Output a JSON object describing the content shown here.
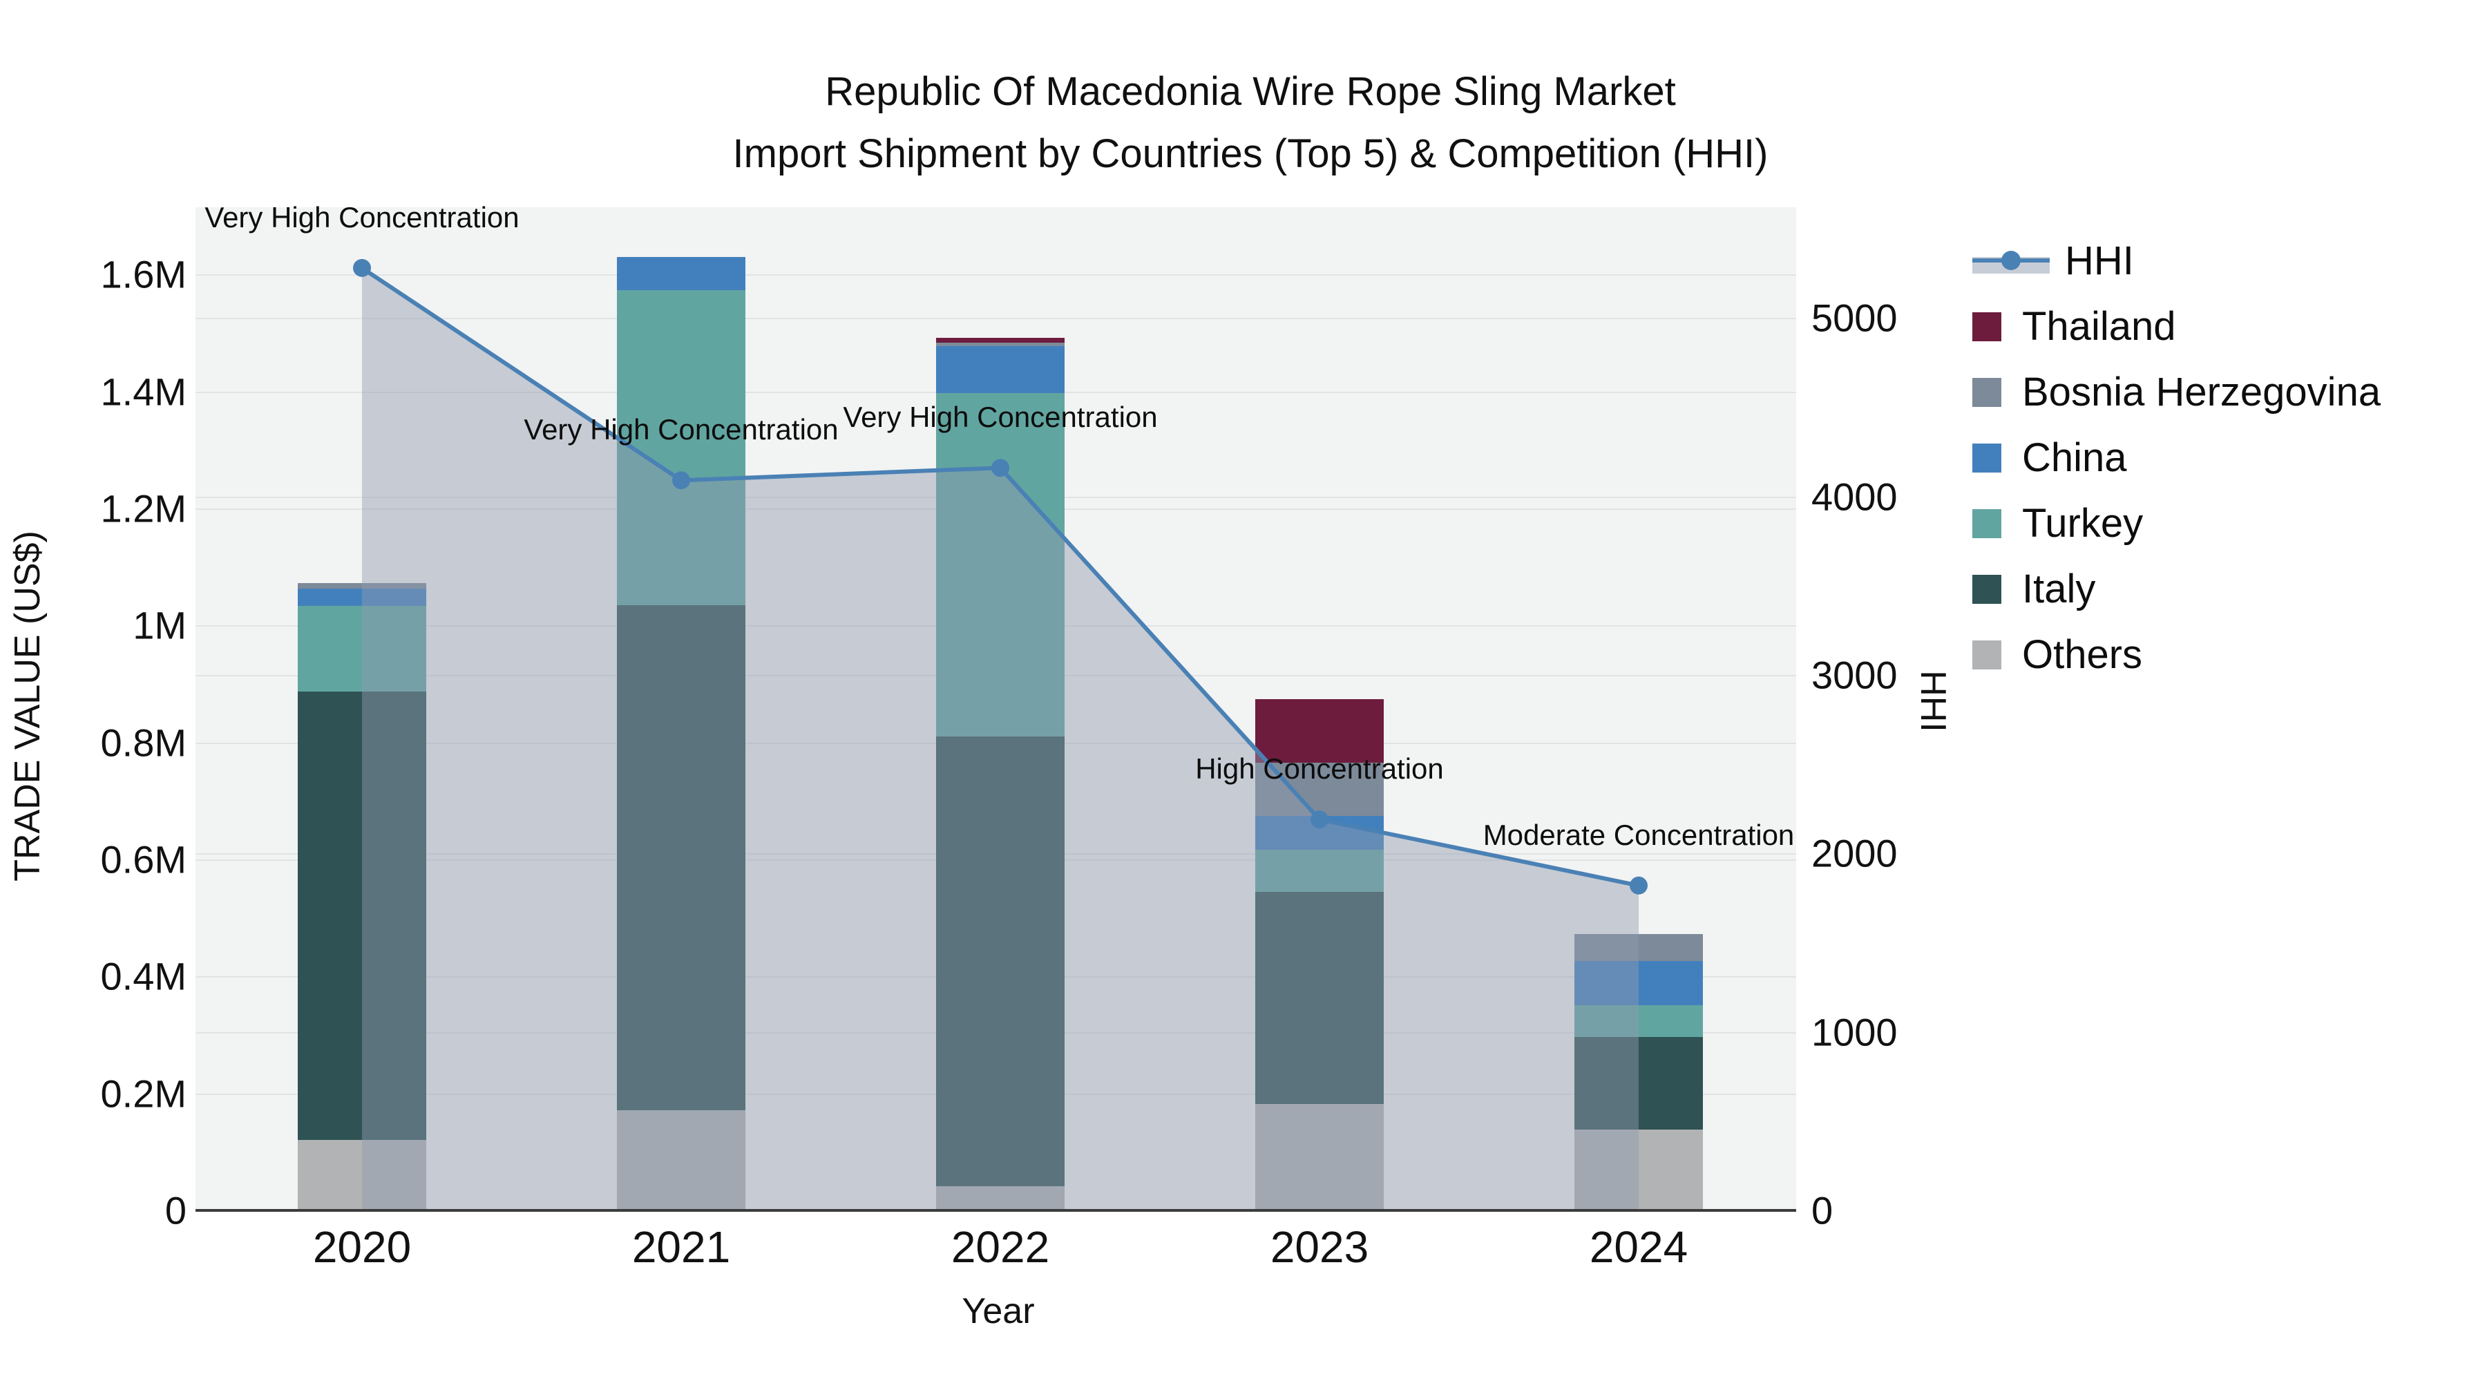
{
  "title": {
    "line1": "Republic Of Macedonia Wire Rope Sling Market",
    "line2": "Import Shipment by Countries (Top 5) & Competition (HHI)"
  },
  "axes": {
    "y_left_title": "TRADE VALUE (US$)",
    "y_right_title": "HHI",
    "x_title": "Year"
  },
  "legend": [
    {
      "label": "HHI",
      "type": "line",
      "color": "#4a81b5"
    },
    {
      "label": "Thailand",
      "type": "swatch",
      "color": "#6d1c3d"
    },
    {
      "label": "Bosnia Herzegovina",
      "type": "swatch",
      "color": "#7d8a99"
    },
    {
      "label": "China",
      "type": "swatch",
      "color": "#4280bd"
    },
    {
      "label": "Turkey",
      "type": "swatch",
      "color": "#61a5a1"
    },
    {
      "label": "Italy",
      "type": "swatch",
      "color": "#2f5254"
    },
    {
      "label": "Others",
      "type": "swatch",
      "color": "#b1b3b4"
    }
  ],
  "chart_data": {
    "type": "bar",
    "subtype": "stacked-bars-with-line-overlay",
    "categories": [
      "2020",
      "2021",
      "2022",
      "2023",
      "2024"
    ],
    "stack_order_bottom_to_top": [
      "Others",
      "Italy",
      "Turkey",
      "China",
      "Bosnia Herzegovina",
      "Thailand"
    ],
    "series": [
      {
        "name": "Others",
        "color": "#b1b3b4",
        "values_musd": [
          0.12,
          0.171,
          0.041,
          0.182,
          0.138
        ]
      },
      {
        "name": "Italy",
        "color": "#2f5254",
        "values_musd": [
          0.767,
          0.864,
          0.769,
          0.363,
          0.158
        ]
      },
      {
        "name": "Turkey",
        "color": "#61a5a1",
        "values_musd": [
          0.147,
          0.538,
          0.587,
          0.072,
          0.055
        ]
      },
      {
        "name": "China",
        "color": "#4280bd",
        "values_musd": [
          0.029,
          0.057,
          0.081,
          0.058,
          0.075
        ]
      },
      {
        "name": "Bosnia Herzegovina",
        "color": "#7d8a99",
        "values_musd": [
          0.01,
          0.0,
          0.006,
          0.09,
          0.047
        ]
      },
      {
        "name": "Thailand",
        "color": "#6d1c3d",
        "values_musd": [
          0.0,
          0.0,
          0.008,
          0.109,
          0.0
        ]
      }
    ],
    "line_series": {
      "name": "HHI",
      "axis": "right",
      "color": "#4a81b5",
      "area_fill": "rgba(144,156,176,0.45)",
      "values": [
        5280,
        4090,
        4160,
        2190,
        1820
      ]
    },
    "annotations": [
      {
        "category_index": 0,
        "text": "Very High Concentration"
      },
      {
        "category_index": 1,
        "text": "Very High Concentration"
      },
      {
        "category_index": 2,
        "text": "Very High Concentration"
      },
      {
        "category_index": 3,
        "text": "High Concentration"
      },
      {
        "category_index": 4,
        "text": "Moderate Concentration"
      }
    ],
    "y_left": {
      "label": "TRADE VALUE (US$)",
      "tick_labels": [
        "0",
        "0.2M",
        "0.4M",
        "0.6M",
        "0.8M",
        "1M",
        "1.2M",
        "1.4M",
        "1.6M"
      ],
      "tick_values_musd": [
        0,
        0.2,
        0.4,
        0.6,
        0.8,
        1.0,
        1.2,
        1.4,
        1.6
      ],
      "range_musd": [
        0,
        1.715
      ],
      "grid": true
    },
    "y_right": {
      "label": "HHI",
      "tick_labels": [
        "0",
        "1000",
        "2000",
        "3000",
        "4000",
        "5000"
      ],
      "tick_values": [
        0,
        1000,
        2000,
        3000,
        4000,
        5000
      ],
      "range": [
        0,
        5620
      ],
      "grid": true
    },
    "x": {
      "label": "Year",
      "tick_labels": [
        "2020",
        "2021",
        "2022",
        "2023",
        "2024"
      ]
    },
    "legend_position": "top-right-outside"
  }
}
